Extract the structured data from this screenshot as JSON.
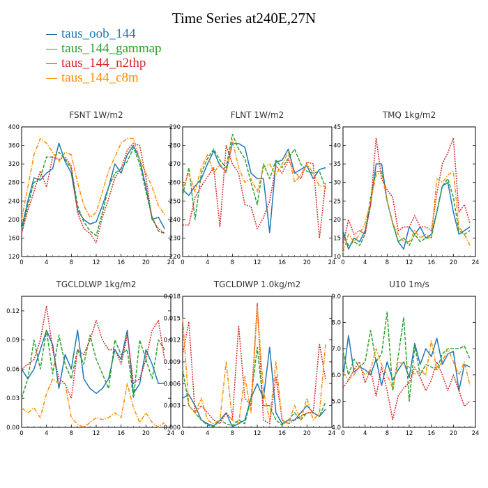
{
  "title": "Time Series at240E,27N",
  "series_meta": [
    {
      "name": "taus_oob_144",
      "color": "#1f77b4",
      "dash": ""
    },
    {
      "name": "taus_144_gammap",
      "color": "#2ca02c",
      "dash": "5,2"
    },
    {
      "name": "taus_144_n2thp",
      "color": "#d62728",
      "dash": "2,1.5"
    },
    {
      "name": "taus_144_c8m",
      "color": "#ff8c00",
      "dash": "6,2,1.5,2"
    }
  ],
  "chart_data": [
    {
      "type": "line",
      "title": "FSNT   1W/m2",
      "xlim": [
        0,
        24
      ],
      "ylim": [
        120,
        400
      ],
      "xticks": [
        0,
        4,
        8,
        12,
        16,
        20,
        24
      ],
      "yticks": [
        "120",
        "160",
        "200",
        "240",
        "280",
        "320",
        "360",
        "400"
      ],
      "x": [
        0,
        1,
        2,
        3,
        4,
        5,
        6,
        7,
        8,
        9,
        10,
        11,
        12,
        13,
        14,
        15,
        16,
        17,
        18,
        19,
        20,
        21,
        22,
        23
      ],
      "series": [
        {
          "name": "taus_oob_144",
          "values": [
            180,
            240,
            290,
            285,
            300,
            310,
            365,
            325,
            300,
            220,
            200,
            190,
            195,
            230,
            270,
            320,
            300,
            340,
            360,
            330,
            270,
            200,
            205,
            180
          ]
        },
        {
          "name": "taus_144_gammap",
          "values": [
            175,
            230,
            280,
            290,
            335,
            335,
            345,
            330,
            310,
            230,
            195,
            175,
            165,
            215,
            270,
            300,
            310,
            325,
            355,
            320,
            260,
            205,
            175,
            170
          ]
        },
        {
          "name": "taus_144_n2thp",
          "values": [
            170,
            220,
            260,
            305,
            270,
            335,
            330,
            335,
            315,
            215,
            180,
            170,
            150,
            205,
            245,
            290,
            310,
            350,
            365,
            360,
            290,
            200,
            180,
            170
          ]
        },
        {
          "name": "taus_144_c8m",
          "values": [
            200,
            270,
            340,
            375,
            365,
            345,
            325,
            345,
            340,
            280,
            230,
            205,
            215,
            260,
            305,
            335,
            365,
            375,
            375,
            330,
            300,
            270,
            230,
            210
          ]
        }
      ]
    },
    {
      "type": "line",
      "title": "FLNT   1W/m2",
      "xlim": [
        0,
        24
      ],
      "ylim": [
        220,
        290
      ],
      "xticks": [
        0,
        4,
        8,
        12,
        16,
        20,
        24
      ],
      "yticks": [
        "220",
        "230",
        "240",
        "250",
        "260",
        "270",
        "280",
        "290"
      ],
      "x": [
        0,
        1,
        2,
        3,
        4,
        5,
        6,
        7,
        8,
        9,
        10,
        11,
        12,
        13,
        14,
        15,
        16,
        17,
        18,
        19,
        20,
        21,
        22,
        23
      ],
      "series": [
        {
          "name": "taus_oob_144",
          "values": [
            256,
            253,
            258,
            262,
            270,
            277,
            269,
            266,
            281,
            281,
            279,
            265,
            262,
            262,
            233,
            271,
            272,
            278,
            265,
            267,
            269,
            262,
            267,
            268
          ]
        },
        {
          "name": "taus_144_gammap",
          "values": [
            253,
            268,
            240,
            265,
            273,
            278,
            272,
            268,
            286,
            278,
            273,
            260,
            248,
            270,
            262,
            272,
            268,
            273,
            278,
            270,
            266,
            265,
            266,
            257
          ]
        },
        {
          "name": "taus_144_n2thp",
          "values": [
            237,
            237,
            252,
            258,
            263,
            268,
            236,
            280,
            270,
            265,
            248,
            247,
            235,
            241,
            250,
            269,
            265,
            272,
            266,
            262,
            271,
            270,
            230,
            260
          ]
        },
        {
          "name": "taus_144_c8m",
          "values": [
            257,
            265,
            255,
            268,
            275,
            265,
            270,
            265,
            283,
            268,
            260,
            262,
            255,
            268,
            270,
            264,
            270,
            276,
            260,
            264,
            270,
            265,
            258,
            258
          ]
        }
      ]
    },
    {
      "type": "line",
      "title": "TMQ   1kg/m2",
      "xlim": [
        0,
        24
      ],
      "ylim": [
        10,
        45
      ],
      "xticks": [
        0,
        4,
        8,
        12,
        16,
        20,
        24
      ],
      "yticks": [
        "10",
        "15",
        "20",
        "25",
        "30",
        "35",
        "40",
        "45"
      ],
      "x": [
        0,
        1,
        2,
        3,
        4,
        5,
        6,
        7,
        8,
        9,
        10,
        11,
        12,
        13,
        14,
        15,
        16,
        17,
        18,
        19,
        20,
        21,
        22,
        23
      ],
      "series": [
        {
          "name": "taus_oob_144",
          "values": [
            17,
            12,
            15,
            14,
            17,
            24,
            35,
            35,
            25,
            19,
            14,
            12,
            18,
            16,
            18,
            15,
            16,
            22,
            29,
            30,
            22,
            16,
            17,
            18
          ]
        },
        {
          "name": "taus_144_gammap",
          "values": [
            16,
            13,
            14,
            13,
            16,
            26,
            33,
            33,
            25,
            19,
            14,
            15,
            13,
            16,
            14,
            15,
            15,
            22,
            29,
            31,
            26,
            17,
            16,
            17
          ]
        },
        {
          "name": "taus_144_n2thp",
          "values": [
            13,
            20,
            16,
            17,
            16,
            24,
            42,
            31,
            28,
            26,
            17,
            18,
            18,
            21,
            18,
            18,
            17,
            27,
            35,
            38,
            42,
            22,
            24,
            19
          ]
        },
        {
          "name": "taus_144_c8m",
          "values": [
            11,
            16,
            14,
            16,
            19,
            25,
            32,
            33,
            25,
            19,
            16,
            14,
            14,
            17,
            15,
            16,
            15,
            31,
            30,
            32,
            33,
            18,
            16,
            13
          ]
        }
      ]
    },
    {
      "type": "line",
      "title": "TGCLDLWP   1kg/m2",
      "xlim": [
        0,
        24
      ],
      "ylim": [
        0,
        0.135
      ],
      "xticks": [
        0,
        4,
        8,
        12,
        16,
        20,
        24
      ],
      "yticks": [
        "0.00",
        "0.03",
        "0.06",
        "0.09",
        "0.12"
      ],
      "x": [
        0,
        1,
        2,
        3,
        4,
        5,
        6,
        7,
        8,
        9,
        10,
        11,
        12,
        13,
        14,
        15,
        16,
        17,
        18,
        19,
        20,
        21,
        22,
        23
      ],
      "series": [
        {
          "name": "taus_oob_144",
          "values": [
            0.06,
            0.05,
            0.06,
            0.08,
            0.1,
            0.085,
            0.04,
            0.075,
            0.06,
            0.1,
            0.05,
            0.04,
            0.035,
            0.04,
            0.05,
            0.08,
            0.07,
            0.1,
            0.035,
            0.045,
            0.08,
            0.065,
            0.045,
            0.045
          ]
        },
        {
          "name": "taus_144_gammap",
          "values": [
            0.03,
            0.05,
            0.09,
            0.06,
            0.1,
            0.055,
            0.095,
            0.065,
            0.05,
            0.08,
            0.065,
            0.095,
            0.07,
            0.055,
            0.04,
            0.09,
            0.075,
            0.08,
            0.03,
            0.09,
            0.07,
            0.05,
            0.09,
            0.08
          ]
        },
        {
          "name": "taus_144_n2thp",
          "values": [
            0.06,
            0.065,
            0.07,
            0.09,
            0.125,
            0.08,
            0.05,
            0.045,
            0.03,
            0.08,
            0.075,
            0.09,
            0.11,
            0.09,
            0.08,
            0.08,
            0.065,
            0.095,
            0.045,
            0.05,
            0.07,
            0.1,
            0.11,
            0.07
          ]
        },
        {
          "name": "taus_144_c8m",
          "values": [
            0.02,
            0.015,
            0.02,
            0.01,
            0.035,
            0.05,
            0.045,
            0.045,
            0.01,
            0.003,
            0.0,
            0.005,
            0.01,
            0.008,
            0.01,
            0.015,
            0.01,
            0.045,
            0.02,
            0.005,
            0.015,
            0.005,
            0.0,
            0.005
          ]
        }
      ]
    },
    {
      "type": "line",
      "title": "TGCLDIWP   1.0kg/m2",
      "xlim": [
        0,
        24
      ],
      "ylim": [
        0,
        0.018
      ],
      "xticks": [
        0,
        4,
        8,
        12,
        16,
        20,
        24
      ],
      "yticks": [
        "0.000",
        "0.003",
        "0.006",
        "0.009",
        "0.012",
        "0.015",
        "0.018"
      ],
      "x": [
        0,
        1,
        2,
        3,
        4,
        5,
        6,
        7,
        8,
        9,
        10,
        11,
        12,
        13,
        14,
        15,
        16,
        17,
        18,
        19,
        20,
        21,
        22,
        23
      ],
      "series": [
        {
          "name": "taus_oob_144",
          "values": [
            0.004,
            0.0045,
            0.003,
            0.001,
            0.0005,
            0.0002,
            0.001,
            0.002,
            0.0001,
            0.0005,
            0.001,
            0.004,
            0.006,
            0.004,
            0.011,
            0.002,
            0.0005,
            0.001,
            0.001,
            0.002,
            0.003,
            0.002,
            0.0015,
            0.0025
          ]
        },
        {
          "name": "taus_144_gammap",
          "values": [
            0.008,
            0.003,
            0.002,
            0.001,
            0.0003,
            0.0001,
            0.001,
            0.0005,
            0.0002,
            0.001,
            0.0005,
            0.004,
            0.011,
            0.003,
            0.003,
            0.001,
            0.0003,
            0.001,
            0.002,
            0.001,
            0.002,
            0.002,
            0.0015,
            0.0035
          ]
        },
        {
          "name": "taus_144_n2thp",
          "values": [
            0.01,
            0.0145,
            0.002,
            0.003,
            0.002,
            0.001,
            0.0005,
            0.002,
            0.001,
            0.014,
            0.004,
            0.003,
            0.017,
            0.001,
            0.0005,
            0.007,
            0.001,
            0.0005,
            0.001,
            0.0015,
            0.002,
            0.002,
            0.0115,
            0.0065
          ]
        },
        {
          "name": "taus_144_c8m",
          "values": [
            0.015,
            0.003,
            0.002,
            0.004,
            0.001,
            0.0005,
            0.001,
            0.009,
            0.001,
            0.0005,
            0.007,
            0.002,
            0.0165,
            0.005,
            0.001,
            0.009,
            0.001,
            0.0005,
            0.003,
            0.001,
            0.004,
            0.001,
            0.002,
            0.0115
          ]
        }
      ]
    },
    {
      "type": "line",
      "title": "U10   1m/s",
      "xlim": [
        0,
        24
      ],
      "ylim": [
        4,
        9
      ],
      "xticks": [
        0,
        4,
        8,
        12,
        16,
        20,
        24
      ],
      "yticks": [
        "4.0",
        "5.0",
        "6.0",
        "7.0",
        "8.0",
        "9.0"
      ],
      "x": [
        0,
        1,
        2,
        3,
        4,
        5,
        6,
        7,
        8,
        9,
        10,
        11,
        12,
        13,
        14,
        15,
        16,
        17,
        18,
        19,
        20,
        21,
        22,
        23
      ],
      "series": [
        {
          "name": "taus_oob_144",
          "values": [
            5.9,
            7.5,
            6.1,
            6.3,
            6.2,
            6.0,
            6.6,
            5.6,
            6.5,
            5.8,
            6.2,
            6.5,
            5.9,
            7.2,
            6.4,
            7.0,
            6.7,
            7.4,
            6.4,
            6.8,
            6.9,
            5.4,
            6.4,
            6.3
          ]
        },
        {
          "name": "taus_144_gammap",
          "values": [
            6.9,
            6.0,
            6.6,
            6.3,
            6.5,
            7.7,
            6.5,
            6.8,
            8.4,
            5.4,
            6.7,
            8.2,
            5.0,
            7.1,
            6.0,
            6.4,
            6.3,
            6.2,
            6.8,
            7.0,
            7.0,
            7.0,
            7.1,
            6.6
          ]
        },
        {
          "name": "taus_144_n2thp",
          "values": [
            5.5,
            5.8,
            6.2,
            6.5,
            5.7,
            6.2,
            5.2,
            6.3,
            5.4,
            4.3,
            5.2,
            5.5,
            5.7,
            6.3,
            5.9,
            5.4,
            5.8,
            6.5,
            6.0,
            5.4,
            6.0,
            5.4,
            4.8,
            5.0
          ]
        },
        {
          "name": "taus_144_c8m",
          "values": [
            6.1,
            5.8,
            6.0,
            6.3,
            6.0,
            6.2,
            7.0,
            6.4,
            6.0,
            5.5,
            6.5,
            6.4,
            6.3,
            6.0,
            6.2,
            6.0,
            7.3,
            6.2,
            6.5,
            7.0,
            6.5,
            6.0,
            6.5,
            5.6
          ]
        }
      ]
    }
  ]
}
